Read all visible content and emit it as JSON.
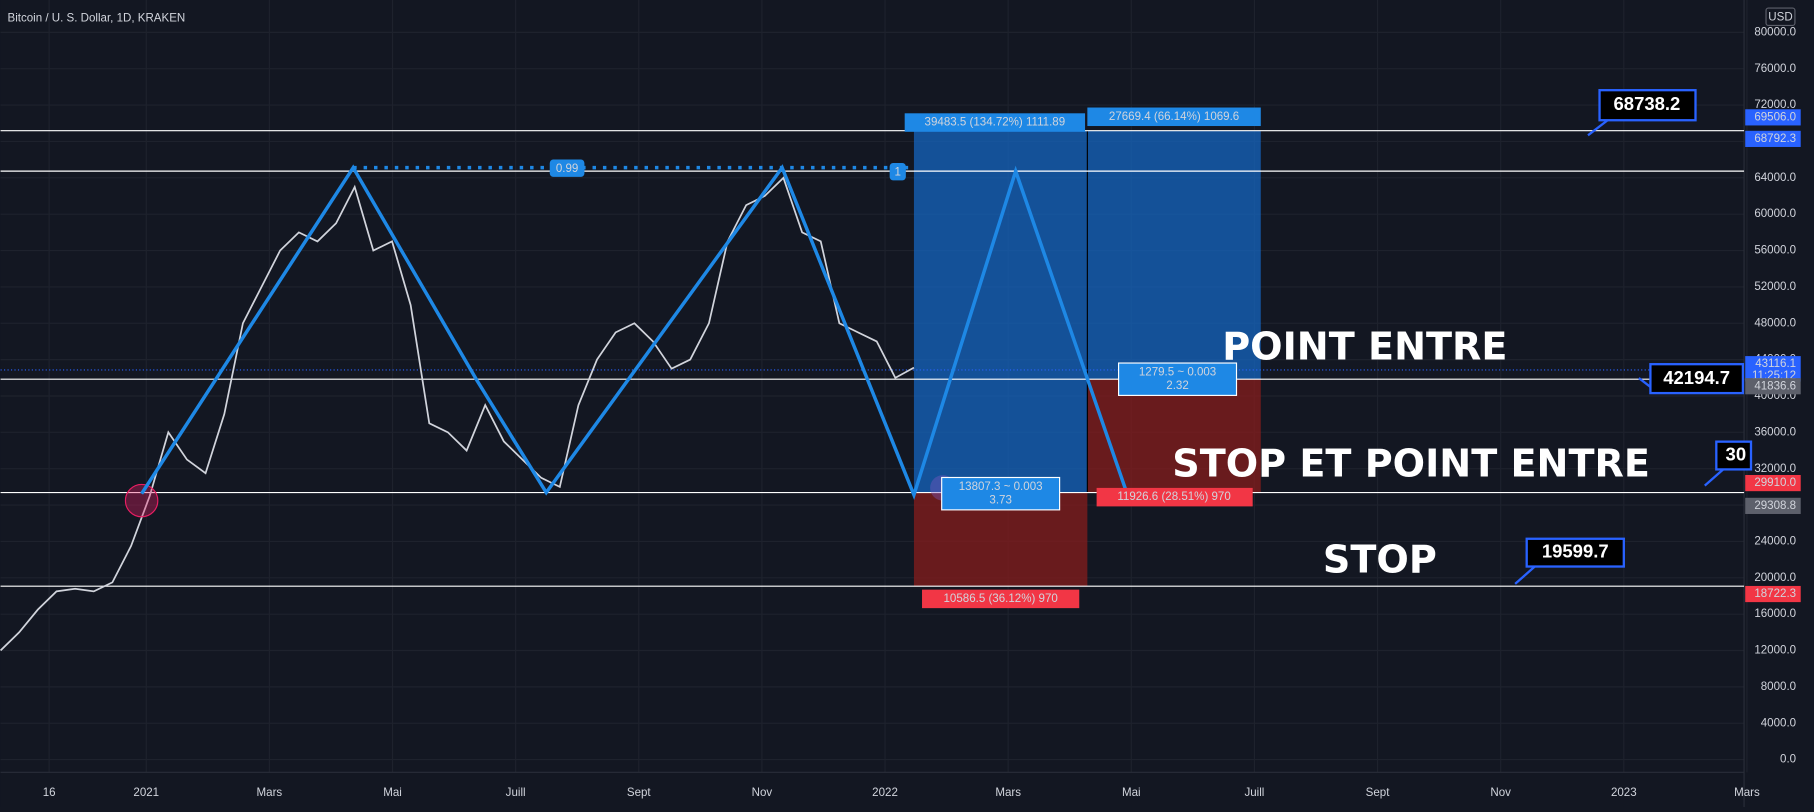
{
  "header": {
    "title": "Bitcoin / U. S. Dollar, 1D, KRAKEN",
    "currency": "USD"
  },
  "chart_data": {
    "type": "line",
    "color": "#d1d4dc",
    "values": [
      12000,
      14000,
      16500,
      18500,
      18800,
      18500,
      19500,
      23500,
      29000,
      36000,
      33000,
      31500,
      38000,
      48000,
      52000,
      56000,
      58000,
      57000,
      59000,
      63000,
      56000,
      57000,
      50000,
      37000,
      36000,
      34000,
      39000,
      35000,
      33000,
      31000,
      30000,
      39000,
      44000,
      47000,
      48000,
      46000,
      43000,
      44000,
      48000,
      57000,
      61000,
      62000,
      64000,
      58000,
      57000,
      48000,
      47000,
      46000,
      42000,
      43116.1
    ],
    "ylim": [
      0,
      80000
    ],
    "yticks": [
      {
        "value": 0,
        "label": "0.0"
      },
      {
        "value": 4000,
        "label": "4000.0"
      },
      {
        "value": 8000,
        "label": "8000.0"
      },
      {
        "value": 12000,
        "label": "12000.0"
      },
      {
        "value": 16000,
        "label": "16000.0"
      },
      {
        "value": 20000,
        "label": "20000.0"
      },
      {
        "value": 24000,
        "label": "24000.0"
      },
      {
        "value": 28000,
        "label": "28000.0"
      },
      {
        "value": 32000,
        "label": "32000.0"
      },
      {
        "value": 36000,
        "label": "36000.0"
      },
      {
        "value": 40000,
        "label": "40000.0"
      },
      {
        "value": 44000,
        "label": "44000.0"
      },
      {
        "value": 48000,
        "label": "48000.0"
      },
      {
        "value": 52000,
        "label": "52000.0"
      },
      {
        "value": 56000,
        "label": "56000.0"
      },
      {
        "value": 60000,
        "label": "60000.0"
      },
      {
        "value": 64000,
        "label": "64000.0"
      },
      {
        "value": 68000,
        "label": "68000.0"
      },
      {
        "value": 72000,
        "label": "72000.0"
      },
      {
        "value": 76000,
        "label": "76000.0"
      },
      {
        "value": 80000,
        "label": "80000.0"
      }
    ],
    "xticks": [
      "16",
      "2021",
      "Mars",
      "Mai",
      "Juill",
      "Sept",
      "Nov",
      "2022",
      "Mars",
      "Mai",
      "Juill",
      "Sept",
      "Nov",
      "2023",
      "Mars"
    ],
    "grid": true
  },
  "price_tags": [
    {
      "value": 69506,
      "label": "69506.0",
      "color": "#2962ff"
    },
    {
      "value": 68792.3,
      "label": "68792.3",
      "color": "#2962ff"
    },
    {
      "value": 43116.1,
      "color": "#2962ff",
      "timer": "11:25:12"
    },
    {
      "value": 41836.6,
      "label": "41836.6",
      "color": "#5d606b"
    },
    {
      "value": 29910,
      "label": "29910.0",
      "color": "#f23645"
    },
    {
      "value": 29308.8,
      "label": "29308.8",
      "color": "#5d606b"
    },
    {
      "value": 18722.3,
      "label": "18722.3",
      "color": "#f23645"
    }
  ],
  "fib": [
    "0.99",
    "1"
  ],
  "positions": {
    "target1": "39483.5 (134.72%) 1111.89",
    "target2": "27669.4 (66.14%) 1069.6",
    "ratio1": [
      "13807.3 ~ 0.003",
      "3.73"
    ],
    "ratio2": [
      "1279.5 ~ 0.003",
      "2.32"
    ],
    "stop1": "10586.5 (36.12%) 970",
    "stop2": "11926.6 (28.51%) 970"
  },
  "callouts": [
    "68738.2",
    "42194.7",
    "30",
    "19599.7"
  ],
  "annotations": [
    "POINT ENTRE",
    "STOP ET POINT ENTRE",
    "STOP"
  ]
}
